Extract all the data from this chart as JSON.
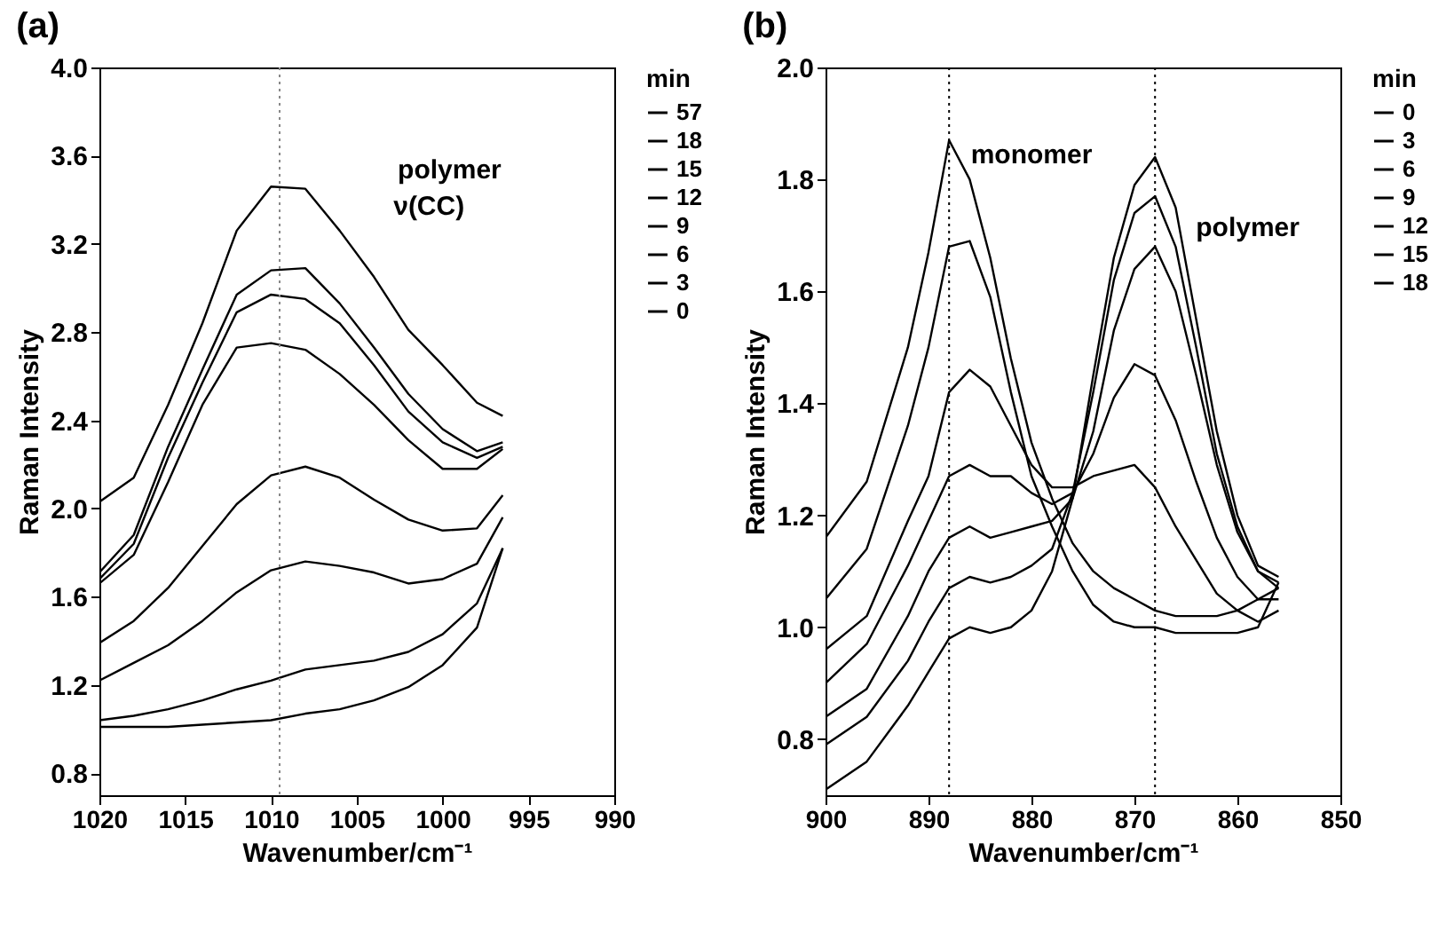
{
  "chart_data": [
    {
      "type": "line",
      "title": "(a)",
      "xlabel": "Wavenumber/cm⁻¹",
      "ylabel": "Raman Intensity",
      "legend_title": "min",
      "legend": "right",
      "x": [
        1020,
        1018,
        1016,
        1014,
        1012,
        1010,
        1008,
        1006,
        1004,
        1002,
        1000,
        998,
        996.5
      ],
      "xlim": [
        1020,
        990
      ],
      "xticks": [
        1020,
        1015,
        1010,
        1005,
        1000,
        995,
        990
      ],
      "ylim": [
        0.7,
        4.0
      ],
      "yticks": [
        0.8,
        1.2,
        1.6,
        {
          "value": 2,
          "label": "2.0"
        },
        2.4,
        2.8,
        3.2,
        3.6,
        {
          "value": 4,
          "label": "4.0"
        }
      ],
      "series": [
        {
          "name": "57",
          "color": "#000000",
          "values": [
            2.03,
            2.14,
            2.47,
            2.84,
            3.26,
            3.46,
            3.45,
            3.26,
            3.05,
            2.81,
            2.65,
            2.48,
            2.42
          ]
        },
        {
          "name": "18",
          "color": "#000000",
          "values": [
            1.71,
            1.88,
            2.28,
            2.63,
            2.97,
            3.08,
            3.09,
            2.93,
            2.73,
            2.52,
            2.36,
            2.26,
            2.3
          ]
        },
        {
          "name": "15",
          "color": "#000000",
          "values": [
            1.68,
            1.84,
            2.23,
            2.57,
            2.89,
            2.97,
            2.95,
            2.84,
            2.65,
            2.44,
            2.3,
            2.23,
            2.28
          ]
        },
        {
          "name": "12",
          "color": "#000000",
          "values": [
            1.66,
            1.79,
            2.12,
            2.47,
            2.73,
            2.75,
            2.72,
            2.61,
            2.47,
            2.31,
            2.18,
            2.18,
            2.27
          ]
        },
        {
          "name": "9",
          "color": "#000000",
          "values": [
            1.39,
            1.49,
            1.64,
            1.83,
            2.02,
            2.15,
            2.19,
            2.14,
            2.04,
            1.95,
            1.9,
            1.91,
            2.06
          ]
        },
        {
          "name": "6",
          "color": "#000000",
          "values": [
            1.22,
            1.3,
            1.38,
            1.49,
            1.62,
            1.72,
            1.76,
            1.74,
            1.71,
            1.66,
            1.68,
            1.75,
            1.96
          ]
        },
        {
          "name": "3",
          "color": "#000000",
          "values": [
            1.04,
            1.06,
            1.09,
            1.13,
            1.18,
            1.22,
            1.27,
            1.29,
            1.31,
            1.35,
            1.43,
            1.57,
            1.82
          ]
        },
        {
          "name": "0",
          "color": "#000000",
          "values": [
            1.01,
            1.01,
            1.01,
            1.02,
            1.03,
            1.04,
            1.07,
            1.09,
            1.13,
            1.19,
            1.29,
            1.46,
            1.82
          ]
        }
      ],
      "ref_lines": [
        {
          "axis": "x",
          "value": 1009.5,
          "color": "#888888",
          "line_style": "dotted"
        }
      ],
      "annotations": [
        "polymer",
        "ν(CC)"
      ]
    },
    {
      "type": "line",
      "title": "(b)",
      "xlabel": "Wavenumber/cm⁻¹",
      "ylabel": "Raman Intensity",
      "legend_title": "min",
      "legend": "right",
      "x": [
        900,
        896,
        892,
        890,
        888,
        886,
        884,
        882,
        880,
        878,
        876,
        874,
        872,
        870,
        868,
        866,
        864,
        862,
        860,
        858,
        856
      ],
      "xlim": [
        900,
        850
      ],
      "xticks": [
        900,
        890,
        880,
        870,
        860,
        850
      ],
      "ylim": [
        0.7,
        2.0
      ],
      "yticks": [
        0.8,
        {
          "value": 1,
          "label": "1.0"
        },
        1.2,
        1.4,
        1.6,
        1.8,
        {
          "value": 2,
          "label": "2.0"
        }
      ],
      "series": [
        {
          "name": "0",
          "color": "#000000",
          "values": [
            1.16,
            1.26,
            1.5,
            1.67,
            1.87,
            1.8,
            1.66,
            1.48,
            1.33,
            1.23,
            1.15,
            1.1,
            1.07,
            1.05,
            1.03,
            1.02,
            1.02,
            1.02,
            1.03,
            1.05,
            1.07
          ]
        },
        {
          "name": "3",
          "color": "#000000",
          "values": [
            1.05,
            1.14,
            1.36,
            1.5,
            1.68,
            1.69,
            1.59,
            1.42,
            1.27,
            1.18,
            1.1,
            1.04,
            1.01,
            1.0,
            1.0,
            0.99,
            0.99,
            0.99,
            0.99,
            1.0,
            1.08
          ]
        },
        {
          "name": "6",
          "color": "#000000",
          "values": [
            0.96,
            1.02,
            1.19,
            1.27,
            1.42,
            1.46,
            1.43,
            1.36,
            1.29,
            1.25,
            1.25,
            1.27,
            1.28,
            1.29,
            1.25,
            1.18,
            1.12,
            1.06,
            1.03,
            1.01,
            1.03
          ]
        },
        {
          "name": "9",
          "color": "#000000",
          "values": [
            0.9,
            0.97,
            1.11,
            1.19,
            1.27,
            1.29,
            1.27,
            1.27,
            1.24,
            1.22,
            1.24,
            1.31,
            1.41,
            1.47,
            1.45,
            1.37,
            1.26,
            1.16,
            1.09,
            1.05,
            1.05
          ]
        },
        {
          "name": "12",
          "color": "#000000",
          "values": [
            0.84,
            0.89,
            1.02,
            1.1,
            1.16,
            1.18,
            1.16,
            1.17,
            1.18,
            1.19,
            1.23,
            1.35,
            1.53,
            1.64,
            1.68,
            1.6,
            1.45,
            1.29,
            1.17,
            1.1,
            1.07
          ]
        },
        {
          "name": "15",
          "color": "#000000",
          "values": [
            0.79,
            0.84,
            0.94,
            1.01,
            1.07,
            1.09,
            1.08,
            1.09,
            1.11,
            1.14,
            1.24,
            1.42,
            1.62,
            1.74,
            1.77,
            1.68,
            1.5,
            1.31,
            1.18,
            1.1,
            1.08
          ]
        },
        {
          "name": "18",
          "color": "#000000",
          "values": [
            0.71,
            0.76,
            0.86,
            0.92,
            0.98,
            1.0,
            0.99,
            1.0,
            1.03,
            1.1,
            1.23,
            1.45,
            1.66,
            1.79,
            1.84,
            1.75,
            1.55,
            1.35,
            1.2,
            1.11,
            1.09
          ]
        }
      ],
      "ref_lines": [
        {
          "axis": "x",
          "value": 888,
          "color": "#000000",
          "line_style": "dotted"
        },
        {
          "axis": "x",
          "value": 868,
          "color": "#000000",
          "line_style": "dotted"
        }
      ],
      "annotations": [
        "monomer",
        "polymer"
      ]
    }
  ]
}
